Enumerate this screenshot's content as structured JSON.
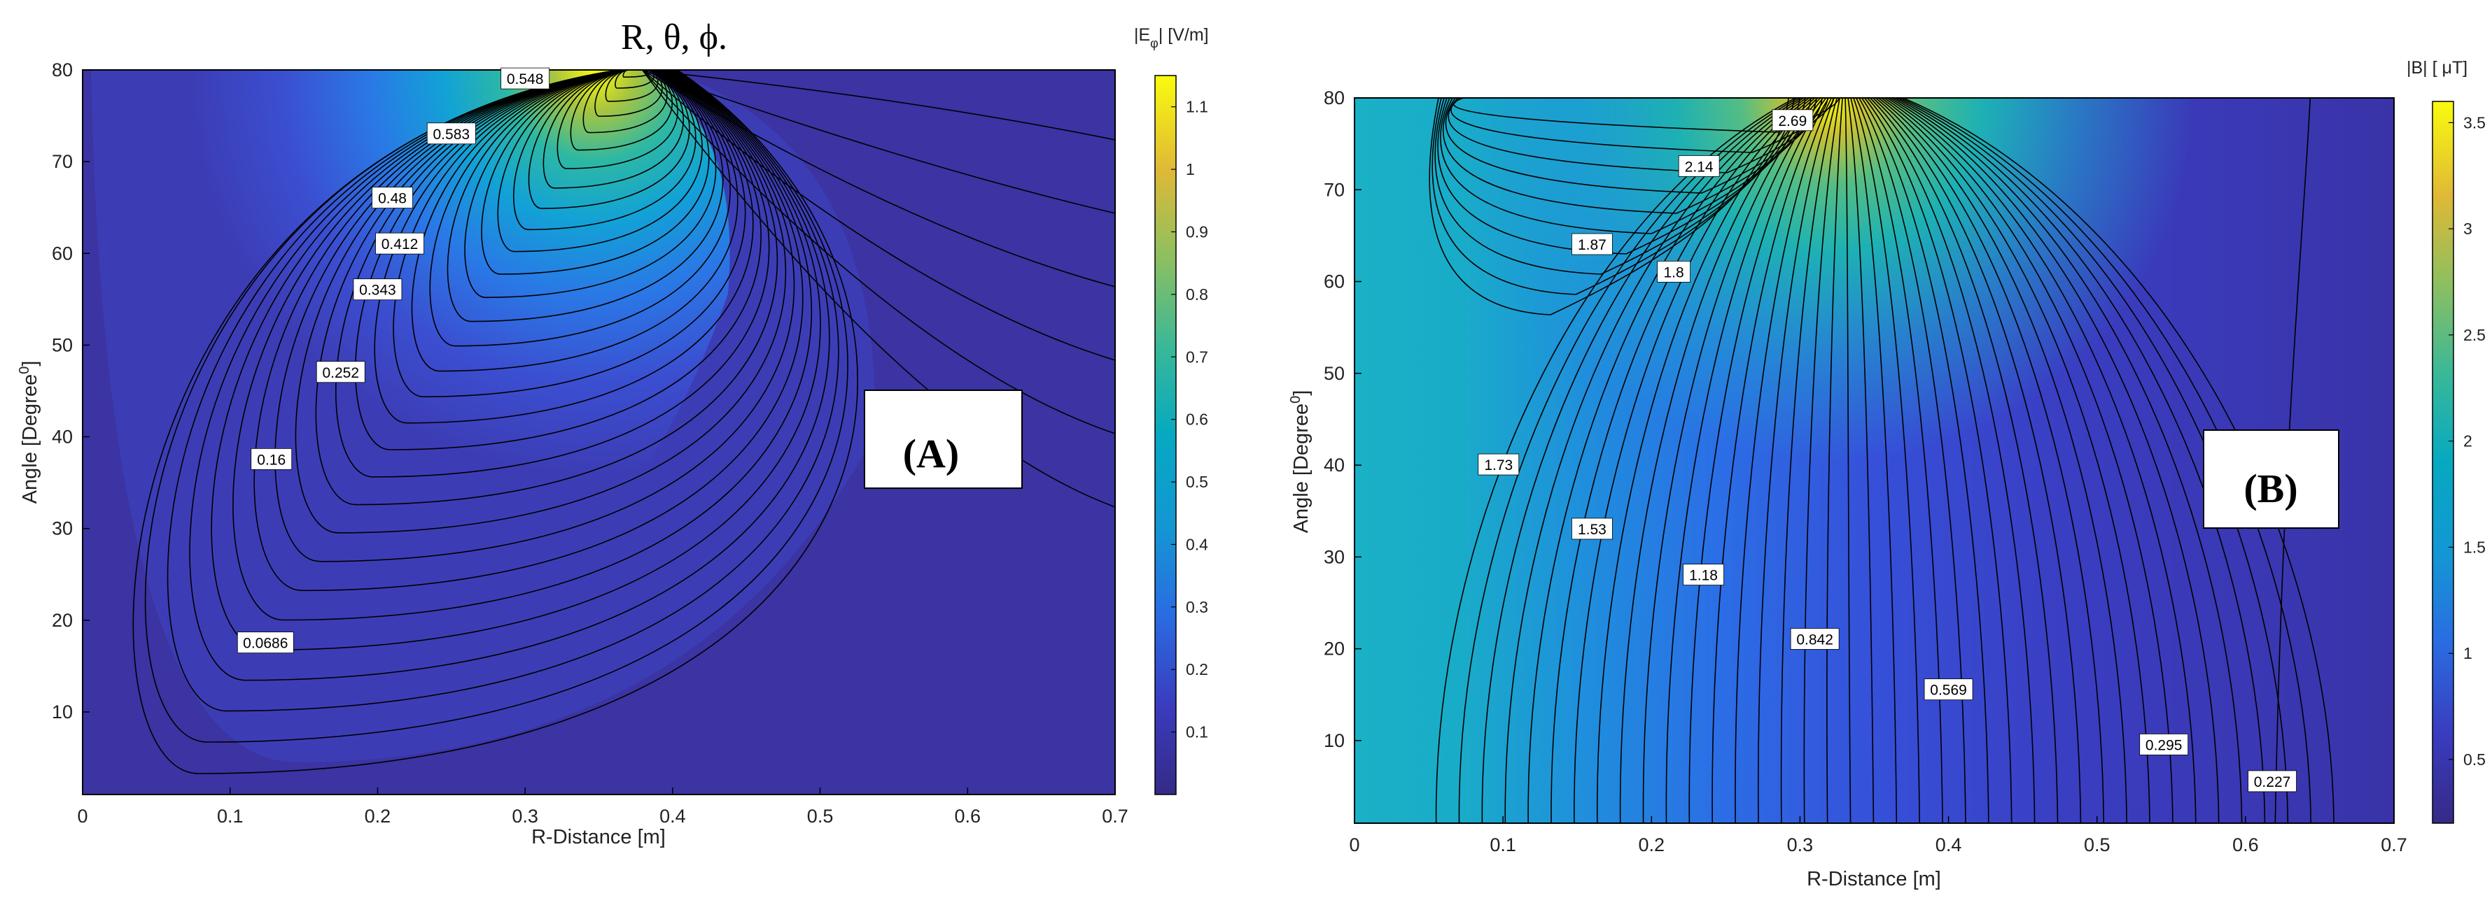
{
  "figure_title": "R, θ, ϕ.",
  "chart_data": [
    {
      "type": "heatmap",
      "panel_label": "(A)",
      "xlabel": "R-Distance [m]",
      "ylabel": "Angle [Degree",
      "ylabel_sup": "0",
      "ylabel_end": "]",
      "xlim": [
        0,
        0.7
      ],
      "ylim": [
        1,
        80
      ],
      "xticks": [
        0,
        0.1,
        0.2,
        0.3,
        0.4,
        0.5,
        0.6,
        0.7
      ],
      "xtick_labels": [
        "0",
        "0.1",
        "0.2",
        "0.3",
        "0.4",
        "0.5",
        "0.6",
        "0.7"
      ],
      "yticks": [
        10,
        20,
        30,
        40,
        50,
        60,
        70,
        80
      ],
      "ytick_labels": [
        "10",
        "20",
        "30",
        "40",
        "50",
        "60",
        "70",
        "80"
      ],
      "colorbar": {
        "title_prefix": "|E",
        "title_sub": "φ",
        "title_suffix": "| [V/m]",
        "range": [
          0,
          1.15
        ],
        "ticks": [
          0.1,
          0.2,
          0.3,
          0.4,
          0.5,
          0.6,
          0.7,
          0.8,
          0.9,
          1,
          1.1
        ],
        "tick_labels": [
          "0.1",
          "0.2",
          "0.3",
          "0.4",
          "0.5",
          "0.6",
          "0.7",
          "0.8",
          "0.9",
          "1",
          "1.1"
        ]
      },
      "peak": {
        "x": 0.37,
        "y": 80
      },
      "contour_labels": [
        {
          "text": "0.548",
          "x": 0.3,
          "y": 79
        },
        {
          "text": "0.583",
          "x": 0.25,
          "y": 73
        },
        {
          "text": "0.48",
          "x": 0.21,
          "y": 66
        },
        {
          "text": "0.412",
          "x": 0.215,
          "y": 61
        },
        {
          "text": "0.343",
          "x": 0.2,
          "y": 56
        },
        {
          "text": "0.252",
          "x": 0.175,
          "y": 47
        },
        {
          "text": "0.16",
          "x": 0.128,
          "y": 37.5
        },
        {
          "text": "0.0686",
          "x": 0.124,
          "y": 17.5
        }
      ]
    },
    {
      "type": "heatmap",
      "panel_label": "(B)",
      "xlabel": "R-Distance [m]",
      "ylabel": "Angle [Degree",
      "ylabel_sup": "0",
      "ylabel_end": "]",
      "xlim": [
        0,
        0.7
      ],
      "ylim": [
        1,
        80
      ],
      "xticks": [
        0,
        0.1,
        0.2,
        0.3,
        0.4,
        0.5,
        0.6,
        0.7
      ],
      "xtick_labels": [
        "0",
        "0.1",
        "0.2",
        "0.3",
        "0.4",
        "0.5",
        "0.6",
        "0.7"
      ],
      "yticks": [
        10,
        20,
        30,
        40,
        50,
        60,
        70,
        80
      ],
      "ytick_labels": [
        "10",
        "20",
        "30",
        "40",
        "50",
        "60",
        "70",
        "80"
      ],
      "colorbar": {
        "title": "|B|  [ μT]",
        "range": [
          0.2,
          3.6
        ],
        "ticks": [
          0.5,
          1,
          1.5,
          2,
          2.5,
          3,
          3.5
        ],
        "tick_labels": [
          "0.5",
          "1",
          "1.5",
          "2",
          "2.5",
          "3",
          "3.5"
        ]
      },
      "peak": {
        "x": 0.33,
        "y": 80
      },
      "contour_labels": [
        {
          "text": "2.69",
          "x": 0.295,
          "y": 77.5
        },
        {
          "text": "2.14",
          "x": 0.232,
          "y": 72.5
        },
        {
          "text": "1.87",
          "x": 0.16,
          "y": 64
        },
        {
          "text": "1.8",
          "x": 0.215,
          "y": 61
        },
        {
          "text": "1.73",
          "x": 0.097,
          "y": 40
        },
        {
          "text": "1.53",
          "x": 0.16,
          "y": 33
        },
        {
          "text": "1.18",
          "x": 0.235,
          "y": 28
        },
        {
          "text": "0.842",
          "x": 0.31,
          "y": 21
        },
        {
          "text": "0.569",
          "x": 0.4,
          "y": 15.5
        },
        {
          "text": "0.295",
          "x": 0.545,
          "y": 9.5
        },
        {
          "text": "0.227",
          "x": 0.618,
          "y": 5.5
        }
      ]
    }
  ]
}
